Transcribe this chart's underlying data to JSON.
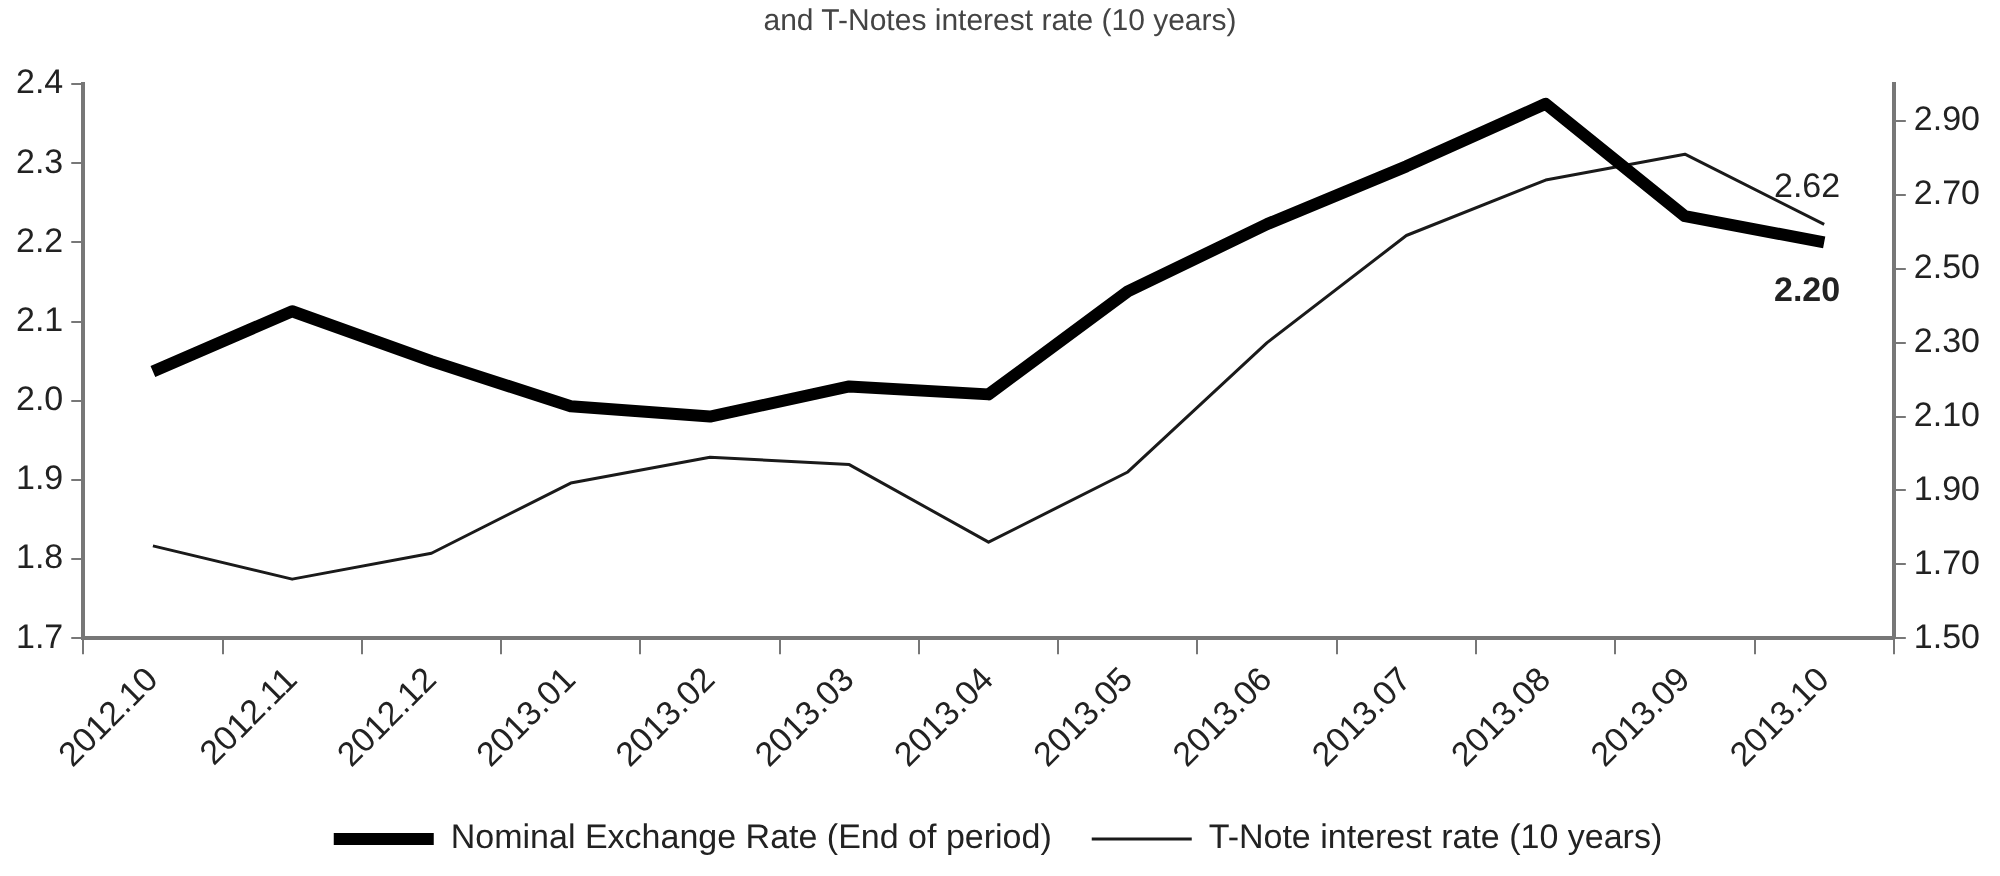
{
  "chart_data": {
    "type": "line",
    "title": "and T-Notes interest rate (10 years)",
    "categories": [
      "2012.10",
      "2012.11",
      "2012.12",
      "2013.01",
      "2013.02",
      "2013.03",
      "2013.04",
      "2013.05",
      "2013.06",
      "2013.07",
      "2013.08",
      "2013.09",
      "2013.10"
    ],
    "series": [
      {
        "name": "Nominal Exchange Rate (End of period)",
        "color": "#000000",
        "values": [
          2.037,
          2.113,
          2.05,
          1.993,
          1.98,
          2.018,
          2.008,
          2.138,
          2.223,
          2.296,
          2.375,
          2.233,
          2.2
        ],
        "value_labels": [
          null,
          null,
          null,
          null,
          null,
          null,
          null,
          null,
          null,
          null,
          null,
          null,
          "2.20"
        ]
      },
      {
        "name": "T-Note interest rate (10 years)",
        "color": "#1a1a1a",
        "axis": "y2",
        "values": [
          1.75,
          1.66,
          1.73,
          1.92,
          1.99,
          1.97,
          1.76,
          1.95,
          2.3,
          2.59,
          2.74,
          2.81,
          2.62
        ],
        "value_labels": [
          null,
          null,
          null,
          null,
          null,
          null,
          null,
          null,
          null,
          null,
          null,
          null,
          "2.62"
        ]
      }
    ],
    "ylim": [
      1.7,
      2.4
    ],
    "yticks": [
      {
        "value": 1.7,
        "label": "1.7"
      },
      {
        "value": 1.8,
        "label": "1.8"
      },
      {
        "value": 1.9,
        "label": "1.9"
      },
      {
        "value": 2.0,
        "label": "2.0"
      },
      {
        "value": 2.1,
        "label": "2.1"
      },
      {
        "value": 2.2,
        "label": "2.2"
      },
      {
        "value": 2.3,
        "label": "2.3"
      },
      {
        "value": 2.4,
        "label": "2.4"
      }
    ],
    "y2lim": [
      1.5,
      3.0
    ],
    "y2ticks": [
      {
        "value": 1.5,
        "label": "1.50"
      },
      {
        "value": 1.7,
        "label": "1.70"
      },
      {
        "value": 1.9,
        "label": "1.90"
      },
      {
        "value": 2.1,
        "label": "2.10"
      },
      {
        "value": 2.3,
        "label": "2.30"
      },
      {
        "value": 2.5,
        "label": "2.50"
      },
      {
        "value": 2.7,
        "label": "2.70"
      },
      {
        "value": 2.9,
        "label": "2.90"
      }
    ],
    "grid": false,
    "legend": "bottom"
  }
}
